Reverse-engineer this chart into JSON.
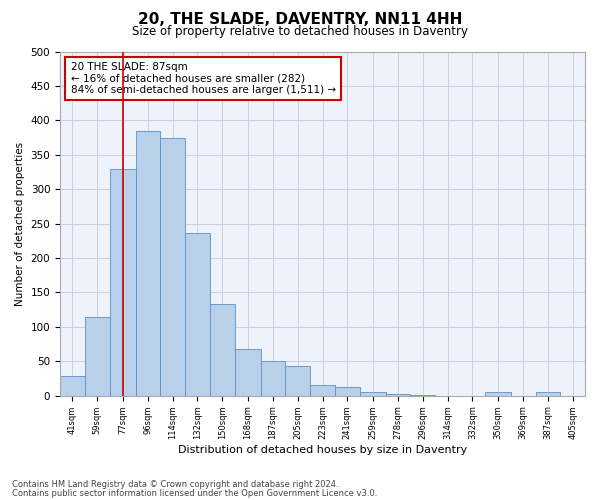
{
  "title": "20, THE SLADE, DAVENTRY, NN11 4HH",
  "subtitle": "Size of property relative to detached houses in Daventry",
  "xlabel": "Distribution of detached houses by size in Daventry",
  "ylabel": "Number of detached properties",
  "bins": [
    "41sqm",
    "59sqm",
    "77sqm",
    "96sqm",
    "114sqm",
    "132sqm",
    "150sqm",
    "168sqm",
    "187sqm",
    "205sqm",
    "223sqm",
    "241sqm",
    "259sqm",
    "278sqm",
    "296sqm",
    "314sqm",
    "332sqm",
    "350sqm",
    "369sqm",
    "387sqm",
    "405sqm"
  ],
  "bin_edges": [
    41,
    59,
    77,
    96,
    114,
    132,
    150,
    168,
    187,
    205,
    223,
    241,
    259,
    278,
    296,
    314,
    332,
    350,
    369,
    387,
    405
  ],
  "values": [
    28,
    115,
    330,
    385,
    375,
    237,
    133,
    68,
    50,
    43,
    15,
    12,
    5,
    3,
    1,
    0,
    0,
    5,
    0,
    6,
    0
  ],
  "bar_color": "#b8d0ea",
  "bar_edge_color": "#5b8fc9",
  "property_size": 87,
  "red_line_color": "#cc0000",
  "annotation_text": "20 THE SLADE: 87sqm\n← 16% of detached houses are smaller (282)\n84% of semi-detached houses are larger (1,511) →",
  "annotation_box_color": "#ffffff",
  "annotation_box_edge": "#cc0000",
  "ylim": [
    0,
    500
  ],
  "yticks": [
    0,
    50,
    100,
    150,
    200,
    250,
    300,
    350,
    400,
    450,
    500
  ],
  "footer_line1": "Contains HM Land Registry data © Crown copyright and database right 2024.",
  "footer_line2": "Contains public sector information licensed under the Open Government Licence v3.0.",
  "bg_color": "#eef2fa",
  "grid_color": "#c8d0e0",
  "title_fontsize": 11,
  "subtitle_fontsize": 8.5
}
